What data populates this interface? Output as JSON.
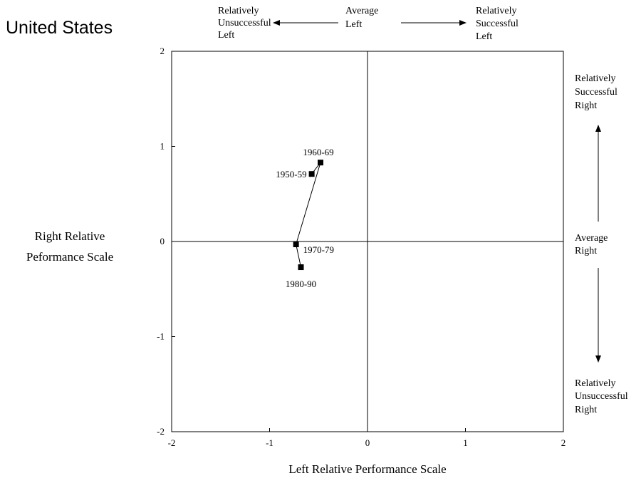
{
  "chart_data": {
    "type": "line",
    "title": "United States",
    "xlabel": "Left Relative Performance Scale",
    "ylabel": [
      "Right Relative",
      "Peformance Scale"
    ],
    "xlim": [
      -2,
      2
    ],
    "ylim": [
      -2,
      2
    ],
    "x_ticks": [
      "-2",
      "-1",
      "0",
      "1",
      "2"
    ],
    "y_ticks": [
      "2",
      "1",
      "0",
      "-1",
      "-2"
    ],
    "x_tick_values": [
      -2,
      -1,
      0,
      1,
      2
    ],
    "y_tick_values": [
      2,
      1,
      0,
      -1,
      -2
    ],
    "grid": false,
    "points": [
      {
        "label": "1950-59",
        "x": -0.57,
        "y": 0.71
      },
      {
        "label": "1960-69",
        "x": -0.48,
        "y": 0.83
      },
      {
        "label": "1970-79",
        "x": -0.73,
        "y": -0.03
      },
      {
        "label": "1980-90",
        "x": -0.68,
        "y": -0.27
      }
    ],
    "top_annotations": {
      "left": [
        "Relatively",
        "Unsuccessful",
        "Left"
      ],
      "center": [
        "Average",
        "Left"
      ],
      "right": [
        "Relatively",
        "Successful",
        "Left"
      ]
    },
    "right_annotations": {
      "top": [
        "Relatively",
        "Successful",
        "Right"
      ],
      "middle": [
        "Average",
        "Right"
      ],
      "bottom": [
        "Relatively",
        "Unsuccessful",
        "Right"
      ]
    }
  }
}
